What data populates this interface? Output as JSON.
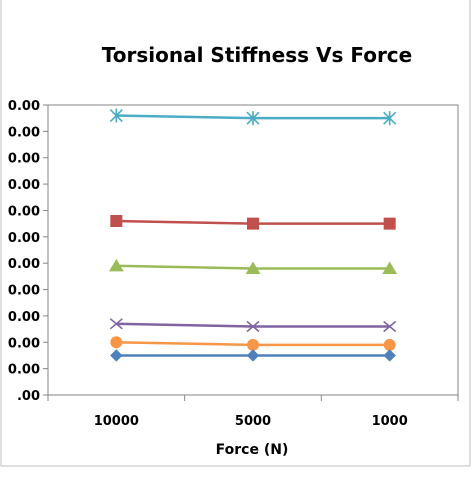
{
  "chart_data": {
    "type": "line",
    "title": "Torsional Stiffness Vs Force",
    "xlabel": "Force (N)",
    "ylabel": "",
    "categories": [
      "10000",
      "5000",
      "1000"
    ],
    "y_tick_labels": [
      ".00",
      "0.00",
      "0.00",
      "0.00",
      "0.00",
      "0.00",
      "0.00",
      "0.00",
      "0.00",
      "0.00",
      "0.00",
      "0.00"
    ],
    "ylim": [
      0,
      11
    ],
    "grid": false,
    "legend": "none",
    "series": [
      {
        "color": "#4bacc6",
        "marker": "star",
        "values": [
          10.6,
          10.5,
          10.5
        ]
      },
      {
        "color": "#c0504d",
        "marker": "square",
        "values": [
          6.6,
          6.5,
          6.5
        ]
      },
      {
        "color": "#9bbb59",
        "marker": "triangle",
        "values": [
          4.9,
          4.8,
          4.8
        ]
      },
      {
        "color": "#8064a2",
        "marker": "x",
        "values": [
          2.7,
          2.6,
          2.6
        ]
      },
      {
        "color": "#f79646",
        "marker": "circle",
        "values": [
          2.0,
          1.9,
          1.9
        ]
      },
      {
        "color": "#4f81bd",
        "marker": "diamond",
        "values": [
          1.5,
          1.5,
          1.5
        ]
      }
    ]
  }
}
